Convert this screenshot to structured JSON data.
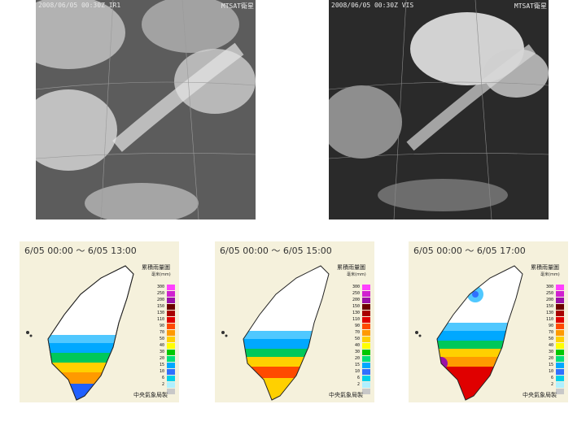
{
  "satellite": [
    {
      "caption_left": "2008/06/05  00:30Z IR1",
      "caption_right": "MTSAT衛星"
    },
    {
      "caption_left": "2008/06/05  00:30Z VIS",
      "caption_right": "MTSAT衛星"
    }
  ],
  "rain_maps": [
    {
      "title": "6/05 00:00  ～  6/05 13:00"
    },
    {
      "title": "6/05 00:00  ～  6/05 15:00"
    },
    {
      "title": "6/05 00:00  ～  6/05 17:00"
    }
  ],
  "legend": {
    "title": "累積雨量圖",
    "unit": "毫米(mm)",
    "levels": [
      "300",
      "250",
      "200",
      "150",
      "130",
      "110",
      "90",
      "70",
      "50",
      "40",
      "30",
      "20",
      "15",
      "10",
      "6",
      "2",
      ""
    ],
    "colors": [
      "#ff40ff",
      "#d020d0",
      "#9a10a8",
      "#6c0000",
      "#a80000",
      "#e00000",
      "#ff4a00",
      "#ff9a00",
      "#ffd000",
      "#ffff00",
      "#00c800",
      "#00e07a",
      "#00a8ff",
      "#3070ff",
      "#00d0e8",
      "#b0f0ff",
      "#c8c8c8"
    ]
  },
  "footer": "中央氣象局製"
}
